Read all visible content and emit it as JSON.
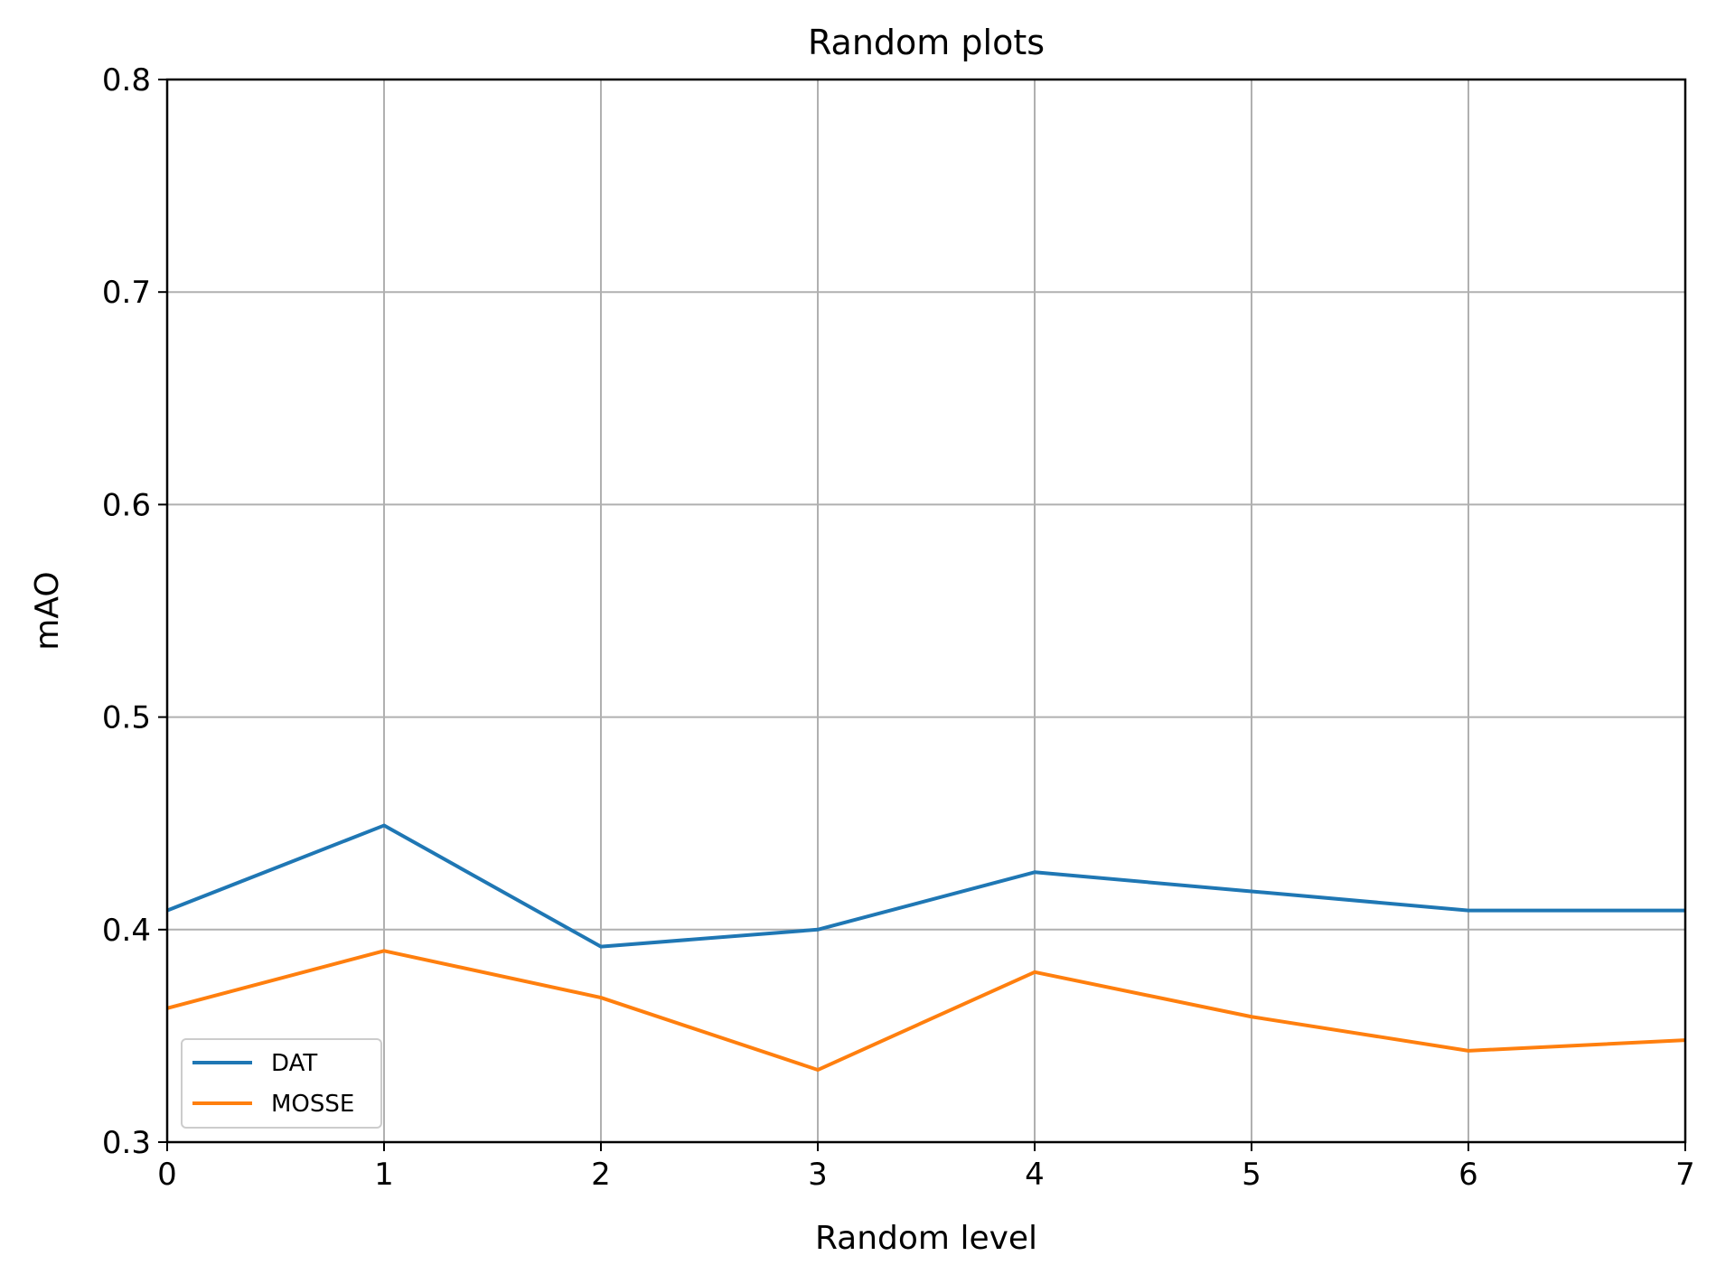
{
  "chart_data": {
    "type": "line",
    "title": "Random plots",
    "xlabel": "Random level",
    "ylabel": "mAO",
    "x": [
      0,
      1,
      2,
      3,
      4,
      5,
      6,
      7
    ],
    "xlim": [
      0,
      7
    ],
    "ylim": [
      0.3,
      0.8
    ],
    "xticks": [
      "0",
      "1",
      "2",
      "3",
      "4",
      "5",
      "6",
      "7"
    ],
    "yticks": [
      "0.3",
      "0.4",
      "0.5",
      "0.6",
      "0.7",
      "0.8"
    ],
    "grid": true,
    "legend_position": "lower-left",
    "series": [
      {
        "name": "DAT",
        "color": "#1f77b4",
        "values": [
          0.409,
          0.449,
          0.392,
          0.4,
          0.427,
          0.418,
          0.409,
          0.409
        ]
      },
      {
        "name": "MOSSE",
        "color": "#ff7f0e",
        "values": [
          0.363,
          0.39,
          0.368,
          0.334,
          0.38,
          0.359,
          0.343,
          0.348
        ]
      }
    ]
  }
}
